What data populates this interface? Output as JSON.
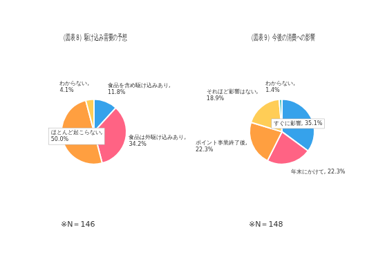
{
  "chart_data": [
    {
      "type": "pie",
      "title": "（図表８）駆け込み需要の予想",
      "categories": [
        "食品を含め駆け込みあり,\n11.8%",
        "食品は外駆け込みあり,\n34.2%",
        "ほとんど起こらない,\n50.0%",
        "わからない,\n4.1%"
      ],
      "values": [
        11.8,
        34.2,
        50.0,
        4.1
      ],
      "annotations": [
        "※N＝146"
      ],
      "data_labels": true
    },
    {
      "type": "pie",
      "title": "（図表９）今後の消費への影響",
      "categories": [
        "すぐに影響, 35.1%",
        "年末にかけて, 22.3%",
        "ポイント事業終了後,\n22.3%",
        "それほど影響はない,\n18.9%",
        "わからない,\n1.4%"
      ],
      "values": [
        35.1,
        22.3,
        22.3,
        18.9,
        1.4
      ],
      "annotations": [
        "※N＝148"
      ],
      "data_labels": true
    }
  ]
}
